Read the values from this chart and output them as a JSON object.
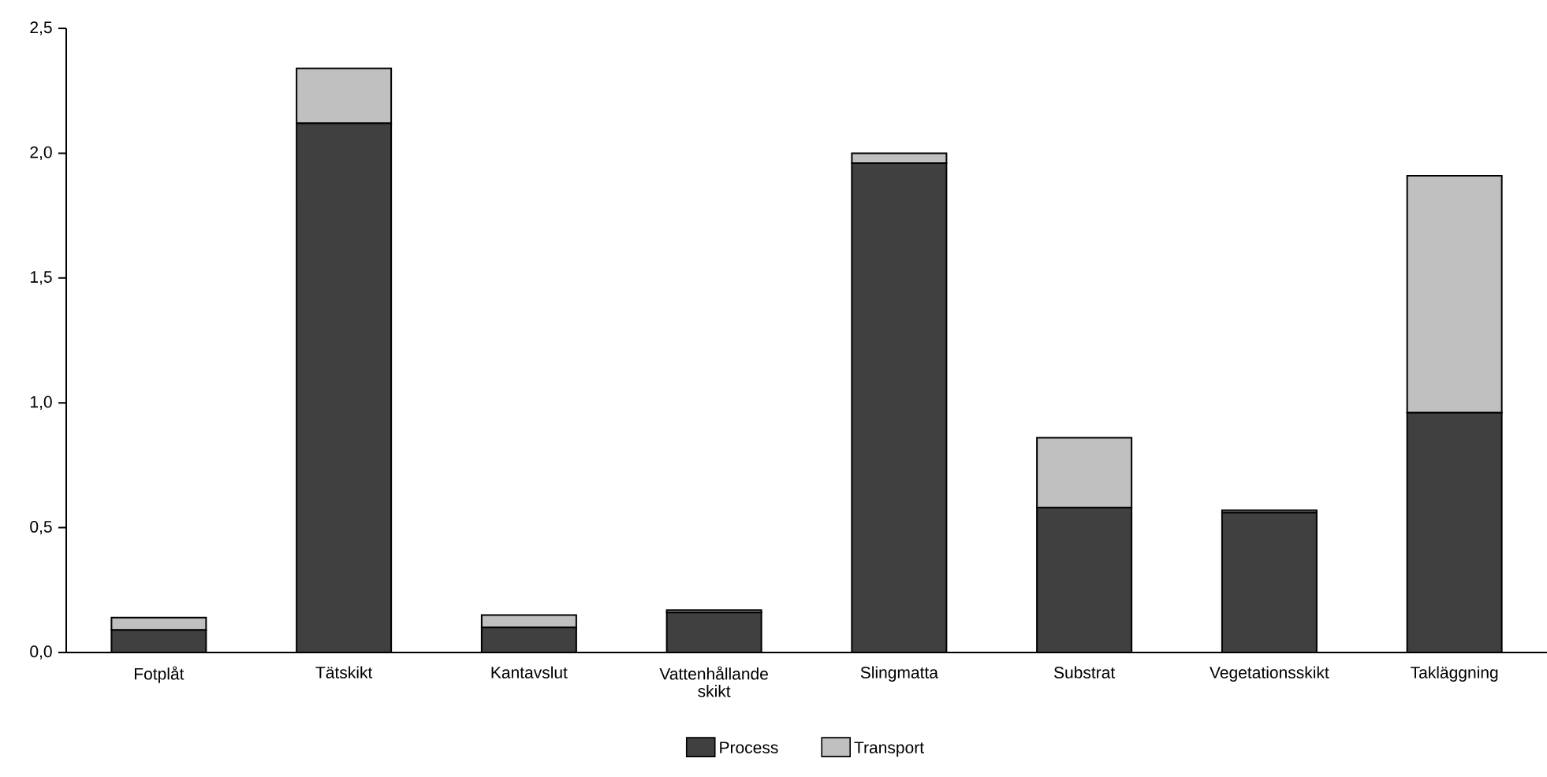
{
  "chart_data": {
    "type": "bar",
    "stacked": true,
    "categories": [
      "Fotplåt",
      "Tätskikt",
      "Kantavslut",
      "Vattenhållande skikt",
      "Slingmatta",
      "Substrat",
      "Vegetationsskikt",
      "Takläggning"
    ],
    "series": [
      {
        "name": "Process",
        "color": "#404040",
        "values": [
          0.09,
          2.12,
          0.1,
          0.16,
          1.96,
          0.58,
          0.56,
          0.96
        ]
      },
      {
        "name": "Transport",
        "color": "#c0c0c0",
        "values": [
          0.05,
          0.22,
          0.05,
          0.01,
          0.04,
          0.28,
          0.01,
          0.95
        ]
      }
    ],
    "ylim": [
      0,
      2.5
    ],
    "yticks": [
      {
        "value": 0,
        "label": "0,0"
      },
      {
        "value": 0.5,
        "label": "0,5"
      },
      {
        "value": 1,
        "label": "1,0"
      },
      {
        "value": 1.5,
        "label": "1,5"
      },
      {
        "value": 2,
        "label": "2,0"
      },
      {
        "value": 2.5,
        "label": "2,5"
      }
    ],
    "legend": "bottom",
    "grid": false
  }
}
